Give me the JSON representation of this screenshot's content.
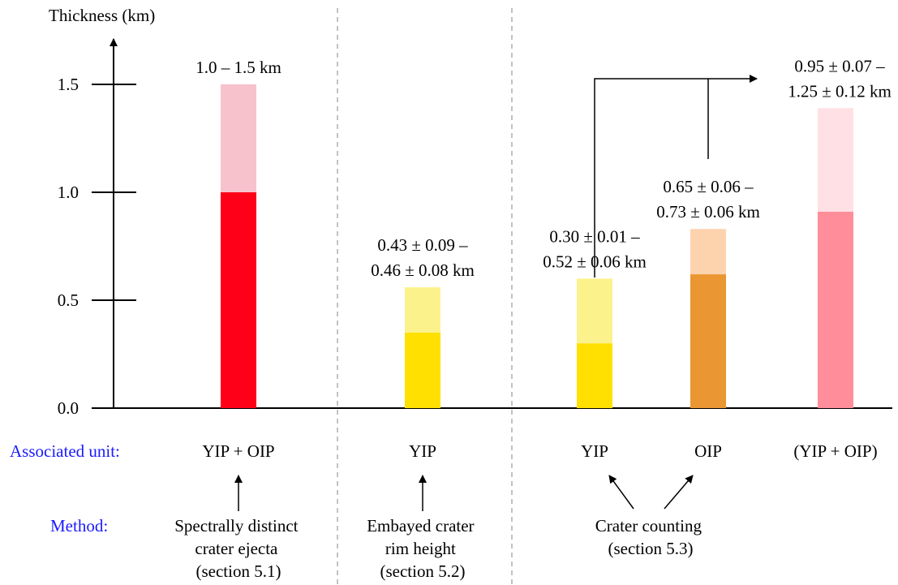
{
  "chart_data": {
    "type": "bar",
    "ylabel": "Thickness (km)",
    "ylim": [
      0,
      1.5
    ],
    "yticks": [
      0.0,
      0.5,
      1.0,
      1.5
    ],
    "grid": false,
    "bars": [
      {
        "unit": "YIP + OIP",
        "min": 1.0,
        "max": 1.5,
        "label": [
          "1.0 – 1.5 km"
        ],
        "color_dark": "#ff0019",
        "color_light": "#f7c2cc"
      },
      {
        "unit": "YIP",
        "min": 0.35,
        "max": 0.56,
        "label": [
          "0.43 ± 0.09 –",
          "0.46 ± 0.08 km"
        ],
        "color_dark": "#ffe000",
        "color_light": "#fcf28c"
      },
      {
        "unit": "YIP",
        "min": 0.3,
        "max": 0.6,
        "label": [
          "0.30 ± 0.01 –",
          "0.52 ± 0.06 km"
        ],
        "color_dark": "#ffe000",
        "color_light": "#fcf28c"
      },
      {
        "unit": "OIP",
        "min": 0.62,
        "max": 0.83,
        "label": [
          "0.65 ± 0.06 –",
          "0.73 ± 0.06 km"
        ],
        "color_dark": "#ea9632",
        "color_light": "#fdd3ad"
      },
      {
        "unit": "(YIP + OIP)",
        "min": 0.91,
        "max": 1.39,
        "label": [
          "0.95 ± 0.07 –",
          "1.25 ± 0.12 km"
        ],
        "color_dark": "#ff8e9a",
        "color_light": "#ffe1e5"
      }
    ]
  },
  "rows": {
    "unit_label": "Associated unit:",
    "method_label": "Method:"
  },
  "methods": [
    {
      "lines": [
        "Spectrally distinct",
        "crater ejecta",
        "(section 5.1)"
      ]
    },
    {
      "lines": [
        "Embayed crater",
        "rim height",
        "(section 5.2)"
      ]
    },
    {
      "lines": [
        "Crater counting",
        "(section 5.3)"
      ]
    }
  ]
}
